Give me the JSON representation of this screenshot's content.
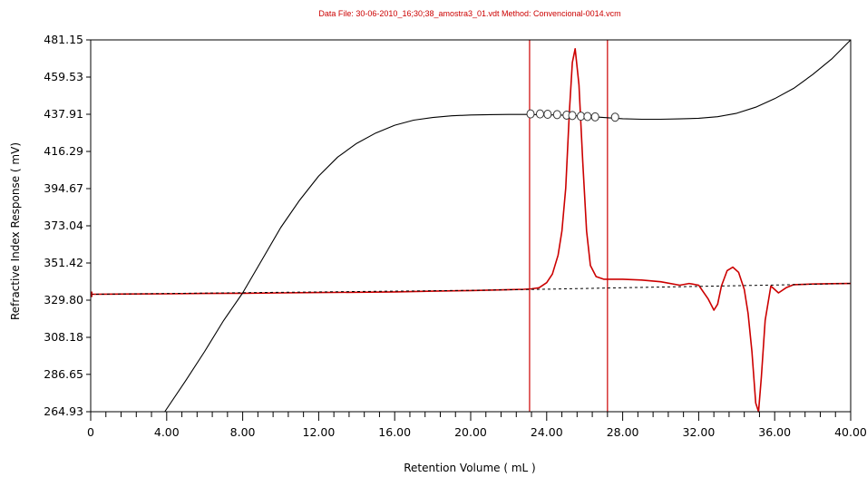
{
  "chart_data": {
    "type": "line",
    "title": "Data File: 30-06-2010_16;30;38_amostra3_01.vdt  Method: Convencional-0014.vcm",
    "xlabel": "Retention Volume  ( mL )",
    "ylabel": "Refractive Index Response  ( mV)",
    "xlim": [
      0,
      40
    ],
    "ylim": [
      264.93,
      481.15
    ],
    "x_ticks": [
      "0",
      "4.00",
      "8.00",
      "12.00",
      "16.00",
      "20.00",
      "24.00",
      "28.00",
      "32.00",
      "36.00",
      "40.00"
    ],
    "y_ticks": [
      "264.93",
      "286.65",
      "308.18",
      "329.80",
      "351.42",
      "373.04",
      "394.67",
      "416.29",
      "437.91",
      "459.53",
      "481.15"
    ],
    "grid": false,
    "colors": {
      "signal": "#cc0000",
      "calibration": "#000000",
      "baseline": "#000000",
      "markers": "#cc0000"
    },
    "vertical_markers": [
      23.1,
      27.2
    ],
    "series": [
      {
        "style": "red-solid",
        "x": [
          0,
          2,
          4,
          6,
          8,
          10,
          12,
          14,
          16,
          18,
          20,
          22,
          22.8,
          23.2,
          23.6,
          24.0,
          24.3,
          24.6,
          24.8,
          25.0,
          25.2,
          25.35,
          25.5,
          25.7,
          25.9,
          26.1,
          26.3,
          26.6,
          27.0,
          27.5,
          28,
          29,
          30,
          31,
          31.5,
          32,
          32.5,
          32.8,
          33.0,
          33.2,
          33.5,
          33.8,
          34.1,
          34.4,
          34.6,
          34.8,
          35.0,
          35.15,
          35.3,
          35.5,
          35.8,
          36.2,
          36.6,
          37,
          38,
          39,
          40
        ],
        "y": [
          333.2,
          333.4,
          333.5,
          333.7,
          333.8,
          334.0,
          334.2,
          334.4,
          334.6,
          335.0,
          335.4,
          335.9,
          336.1,
          336.4,
          337.0,
          340.0,
          345.0,
          356.0,
          370.0,
          395.0,
          440.0,
          468.0,
          476.0,
          455.0,
          410.0,
          370.0,
          350.0,
          343.5,
          342.0,
          342.0,
          342.0,
          341.5,
          340.5,
          338.5,
          339.5,
          338.5,
          330.5,
          324.0,
          327.5,
          338.0,
          347.0,
          349.0,
          346.0,
          336.0,
          322.0,
          300.0,
          270.0,
          264.93,
          285.0,
          318.0,
          338.0,
          334.0,
          337.0,
          338.8,
          339.2,
          339.4,
          339.5
        ]
      },
      {
        "style": "black-dashed",
        "x": [
          0,
          20,
          24,
          28,
          32,
          36,
          40
        ],
        "y": [
          333.2,
          335.5,
          336.2,
          337.0,
          337.8,
          338.6,
          339.5
        ]
      },
      {
        "style": "black-solid",
        "x": [
          3.9,
          5,
          6,
          7,
          8,
          9,
          10,
          11,
          12,
          13,
          14,
          15,
          16,
          17,
          18,
          19,
          20,
          21,
          22,
          23,
          24,
          25,
          26,
          27,
          28,
          29,
          30,
          31,
          32,
          33,
          34,
          35,
          36,
          37,
          38,
          39,
          40
        ],
        "y": [
          264.93,
          283.0,
          300.0,
          318.0,
          334.0,
          353.0,
          372.0,
          388.0,
          402.0,
          413.0,
          421.0,
          427.0,
          431.5,
          434.5,
          436.0,
          437.0,
          437.5,
          437.7,
          437.8,
          437.8,
          437.6,
          437.3,
          436.8,
          436.0,
          435.3,
          435.0,
          435.0,
          435.2,
          435.6,
          436.5,
          438.5,
          442.0,
          447.0,
          453.0,
          461.0,
          470.0,
          481.15
        ]
      },
      {
        "style": "markers",
        "x": [
          23.15,
          23.65,
          24.05,
          24.55,
          25.05,
          25.35,
          25.8,
          26.15,
          26.55,
          27.6
        ],
        "y": [
          438.1,
          438.1,
          437.9,
          437.7,
          437.4,
          437.2,
          436.8,
          436.6,
          436.4,
          436.2
        ]
      }
    ]
  }
}
